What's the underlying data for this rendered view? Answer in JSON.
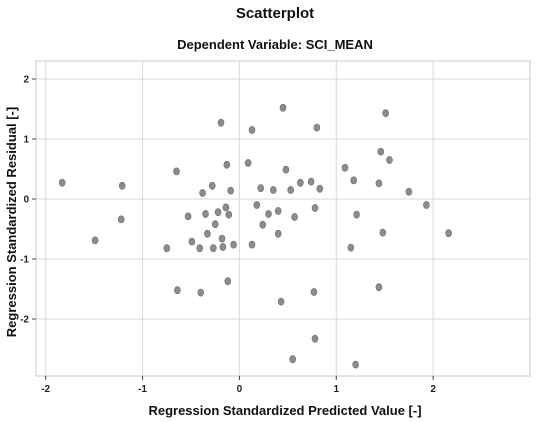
{
  "chart_data": {
    "type": "scatter",
    "title": "Scatterplot",
    "subtitle": "Dependent Variable: SCI_MEAN",
    "xlabel": "Regression Standardized Predicted Value [-]",
    "ylabel": "Regression Standardized Residual [-]",
    "xlim": [
      -2.1,
      3.0
    ],
    "ylim": [
      -2.95,
      2.3
    ],
    "xticks": [
      -2,
      -1,
      0,
      1,
      2
    ],
    "yticks": [
      -2,
      -1,
      0,
      1,
      2
    ],
    "x_tick_labels": [
      "-2",
      "-1",
      "0",
      "1",
      "2"
    ],
    "y_tick_labels": [
      "-2",
      "-1",
      "0",
      "1",
      "2"
    ],
    "grid": true,
    "legend": "none",
    "marker_color": "#8c8c8c",
    "points": [
      {
        "x": -1.83,
        "y": 0.27
      },
      {
        "x": -1.49,
        "y": -0.69
      },
      {
        "x": -1.21,
        "y": 0.22
      },
      {
        "x": -1.22,
        "y": -0.34
      },
      {
        "x": -0.75,
        "y": -0.82
      },
      {
        "x": -0.65,
        "y": 0.46
      },
      {
        "x": -0.64,
        "y": -1.52
      },
      {
        "x": -0.53,
        "y": -0.29
      },
      {
        "x": -0.49,
        "y": -0.71
      },
      {
        "x": -0.41,
        "y": -0.82
      },
      {
        "x": -0.4,
        "y": -1.56
      },
      {
        "x": -0.38,
        "y": 0.1
      },
      {
        "x": -0.35,
        "y": -0.25
      },
      {
        "x": -0.33,
        "y": -0.58
      },
      {
        "x": -0.28,
        "y": 0.22
      },
      {
        "x": -0.27,
        "y": -0.82
      },
      {
        "x": -0.25,
        "y": -0.42
      },
      {
        "x": -0.22,
        "y": -0.22
      },
      {
        "x": -0.19,
        "y": 1.27
      },
      {
        "x": -0.18,
        "y": -0.66
      },
      {
        "x": -0.17,
        "y": -0.8
      },
      {
        "x": -0.14,
        "y": -0.14
      },
      {
        "x": -0.13,
        "y": 0.57
      },
      {
        "x": -0.12,
        "y": -1.37
      },
      {
        "x": -0.11,
        "y": -0.26
      },
      {
        "x": -0.09,
        "y": 0.14
      },
      {
        "x": -0.06,
        "y": -0.76
      },
      {
        "x": 0.09,
        "y": 0.6
      },
      {
        "x": 0.13,
        "y": 1.15
      },
      {
        "x": 0.13,
        "y": -0.76
      },
      {
        "x": 0.18,
        "y": -0.1
      },
      {
        "x": 0.22,
        "y": 0.18
      },
      {
        "x": 0.24,
        "y": -0.43
      },
      {
        "x": 0.3,
        "y": -0.25
      },
      {
        "x": 0.35,
        "y": 0.15
      },
      {
        "x": 0.4,
        "y": -0.58
      },
      {
        "x": 0.4,
        "y": -0.2
      },
      {
        "x": 0.43,
        "y": -1.71
      },
      {
        "x": 0.45,
        "y": 1.52
      },
      {
        "x": 0.48,
        "y": 0.49
      },
      {
        "x": 0.53,
        "y": 0.15
      },
      {
        "x": 0.55,
        "y": -2.67
      },
      {
        "x": 0.57,
        "y": -0.3
      },
      {
        "x": 0.63,
        "y": 0.27
      },
      {
        "x": 0.74,
        "y": 0.29
      },
      {
        "x": 0.77,
        "y": -1.55
      },
      {
        "x": 0.78,
        "y": -0.15
      },
      {
        "x": 0.78,
        "y": -2.33
      },
      {
        "x": 0.8,
        "y": 1.19
      },
      {
        "x": 0.83,
        "y": 0.17
      },
      {
        "x": 1.09,
        "y": 0.52
      },
      {
        "x": 1.15,
        "y": -0.81
      },
      {
        "x": 1.18,
        "y": 0.31
      },
      {
        "x": 1.2,
        "y": -2.76
      },
      {
        "x": 1.21,
        "y": -0.26
      },
      {
        "x": 1.44,
        "y": 0.26
      },
      {
        "x": 1.44,
        "y": -1.47
      },
      {
        "x": 1.46,
        "y": 0.79
      },
      {
        "x": 1.48,
        "y": -0.56
      },
      {
        "x": 1.51,
        "y": 1.43
      },
      {
        "x": 1.55,
        "y": 0.65
      },
      {
        "x": 1.75,
        "y": 0.12
      },
      {
        "x": 1.93,
        "y": -0.1
      },
      {
        "x": 2.16,
        "y": -0.57
      }
    ]
  }
}
